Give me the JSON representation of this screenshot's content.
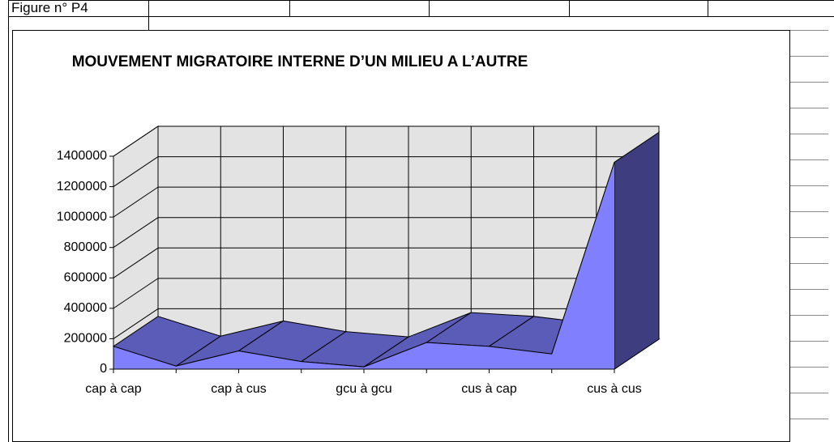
{
  "header": {
    "cell": "Figure n° P4"
  },
  "chart_data": {
    "type": "area",
    "title": "MOUVEMENT MIGRATOIRE INTERNE D’UN MILIEU A L’AUTRE",
    "categories": [
      "cap à cap",
      null,
      "cap à cus",
      null,
      "gcu à gcu",
      null,
      "cus à cap",
      null,
      "cus à cus"
    ],
    "values": [
      150000,
      20000,
      120000,
      50000,
      15000,
      175000,
      150000,
      100000,
      1360000
    ],
    "color": "#8080ff",
    "top_color": "#5b5bb8",
    "side_color": "#3d3d80",
    "ylim": [
      0,
      1400000
    ],
    "yticks": [
      0,
      200000,
      400000,
      600000,
      800000,
      1000000,
      1200000,
      1400000
    ],
    "grid": true
  }
}
